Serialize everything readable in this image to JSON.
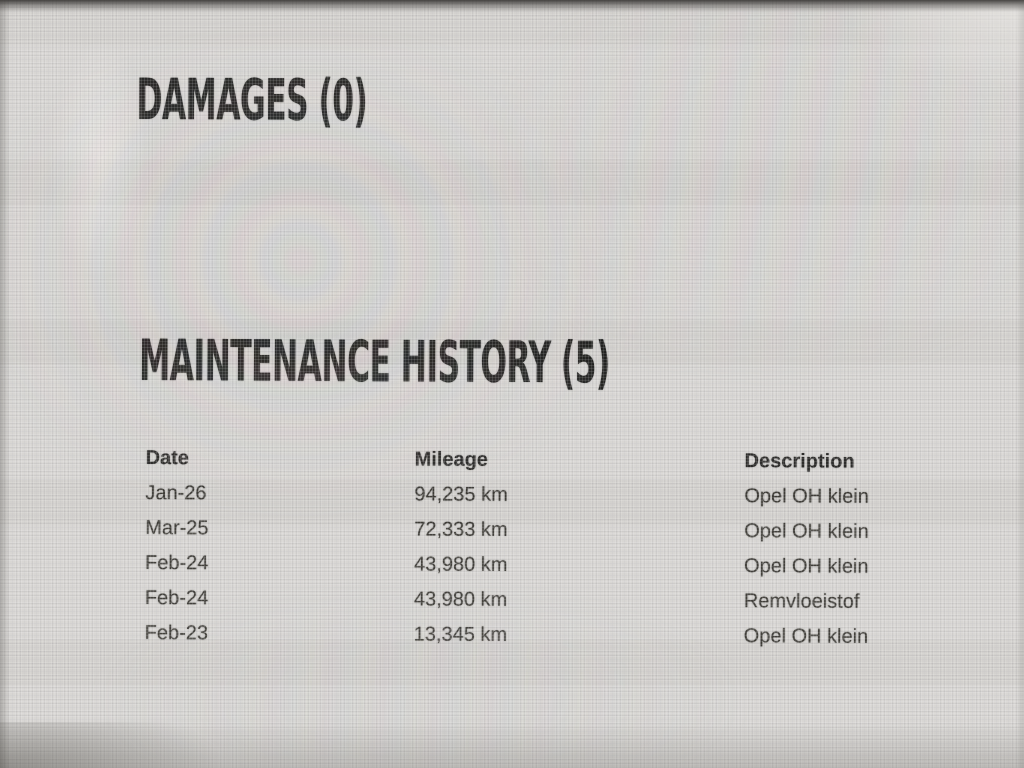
{
  "report": {
    "damages_heading": "DAMAGES (0)",
    "maintenance_heading": "MAINTENANCE HISTORY (5)",
    "damages_count": 0,
    "maintenance_count": 5
  },
  "table": {
    "columns": [
      "Date",
      "Mileage",
      "Description"
    ],
    "rows": [
      {
        "date": "Jan-26",
        "mileage": "94,235 km",
        "description": "Opel OH klein"
      },
      {
        "date": "Mar-25",
        "mileage": "72,333 km",
        "description": "Opel OH klein"
      },
      {
        "date": "Feb-24",
        "mileage": "43,980 km",
        "description": "Opel OH klein"
      },
      {
        "date": "Feb-24",
        "mileage": "43,980 km",
        "description": "Remvloeistof"
      },
      {
        "date": "Feb-23",
        "mileage": "13,345 km",
        "description": "Opel OH klein"
      }
    ]
  },
  "colors": {
    "screen_background": "#d6d4d1",
    "heading_text": "#1c1c1a",
    "table_header_text": "#232220",
    "table_cell_text": "#3a3833"
  }
}
